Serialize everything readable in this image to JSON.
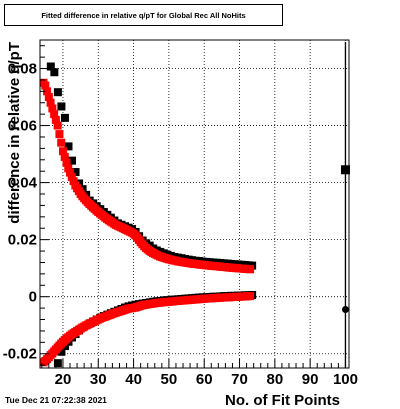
{
  "chart_data": {
    "type": "scatter",
    "title": "Fitted difference in relative q/pT for Global Rec All NoHits",
    "xlabel": "No. of Fit Points",
    "ylabel": "difference in relative q/pT",
    "xlim": [
      13.5,
      101
    ],
    "ylim": [
      -0.025,
      0.09
    ],
    "x_ticks": [
      20,
      30,
      40,
      50,
      60,
      70,
      80,
      90,
      100
    ],
    "x_tick_labels": [
      "20",
      "30",
      "40",
      "50",
      "60",
      "70",
      "80",
      "90",
      "100"
    ],
    "y_ticks": [
      -0.02,
      0,
      0.02,
      0.04,
      0.06,
      0.08
    ],
    "y_tick_labels": [
      "-0.02",
      "0",
      "0.02",
      "0.04",
      "0.06",
      "0.08"
    ],
    "grid": true,
    "series": [
      {
        "color": "#000000",
        "marker": "square",
        "x": [
          16,
          17,
          18,
          19,
          20,
          21,
          22,
          23,
          24,
          25,
          26,
          27,
          28,
          29,
          30,
          31,
          32,
          33,
          34,
          35,
          36,
          37,
          38,
          39,
          40,
          41,
          42,
          43,
          44,
          45,
          46,
          47,
          48,
          49,
          50,
          51,
          52,
          53,
          54,
          55,
          56,
          57,
          58,
          59,
          60,
          61,
          62,
          63,
          64,
          65,
          66,
          67,
          68,
          69,
          70,
          71,
          72,
          73
        ],
        "y": [
          0.08,
          0.078,
          0.071,
          0.066,
          0.062,
          0.052,
          0.047,
          0.043,
          0.039,
          0.037,
          0.035,
          0.033,
          0.032,
          0.031,
          0.03,
          0.029,
          0.028,
          0.027,
          0.026,
          0.025,
          0.0245,
          0.024,
          0.0235,
          0.023,
          0.022,
          0.0205,
          0.019,
          0.018,
          0.0172,
          0.0162,
          0.0155,
          0.015,
          0.0145,
          0.014,
          0.0136,
          0.0132,
          0.013,
          0.0128,
          0.0125,
          0.0123,
          0.0121,
          0.0119,
          0.0118,
          0.0116,
          0.0115,
          0.0114,
          0.0113,
          0.0112,
          0.0111,
          0.011,
          0.0109,
          0.0108,
          0.0107,
          0.0106,
          0.0105,
          0.0104,
          0.0103,
          0.0102
        ]
      },
      {
        "color": "#000000",
        "marker": "square",
        "x": [
          18,
          19,
          20,
          21,
          22,
          23,
          24,
          25,
          26,
          27,
          28,
          29,
          30,
          31,
          32,
          33,
          34,
          35,
          36,
          37,
          38,
          39,
          40,
          41,
          42,
          43,
          44,
          45,
          46,
          47,
          48,
          49,
          50,
          51,
          52,
          53,
          54,
          55,
          56,
          57,
          58,
          59,
          60,
          61,
          62,
          63,
          64,
          65,
          66,
          67,
          68,
          69,
          70,
          71,
          72,
          73
        ],
        "y": [
          -0.024,
          -0.02,
          -0.018,
          -0.0165,
          -0.015,
          -0.0138,
          -0.0125,
          -0.0115,
          -0.0108,
          -0.0101,
          -0.0094,
          -0.0087,
          -0.0081,
          -0.0075,
          -0.007,
          -0.0065,
          -0.006,
          -0.0055,
          -0.005,
          -0.0045,
          -0.0041,
          -0.0038,
          -0.0035,
          -0.0033,
          -0.0031,
          -0.0029,
          -0.0027,
          -0.0025,
          -0.0023,
          -0.0022,
          -0.002,
          -0.0019,
          -0.0018,
          -0.0017,
          -0.0016,
          -0.0015,
          -0.0014,
          -0.0013,
          -0.0012,
          -0.0011,
          -0.001,
          -0.0009,
          -0.0009,
          -0.0008,
          -0.0007,
          -0.0007,
          -0.0006,
          -0.0005,
          -0.0005,
          -0.0004,
          -0.0004,
          -0.0003,
          -0.0003,
          -0.0002,
          -0.0002,
          -0.0001
        ]
      },
      {
        "color": "#ff0000",
        "marker": "square",
        "x": [
          14.5,
          15,
          15.5,
          16,
          16.5,
          17,
          17.5,
          18,
          18.5,
          19,
          19.5,
          20,
          20.5,
          21,
          21.5,
          22,
          22.5,
          23,
          23.5,
          24,
          24.5,
          25,
          25.5,
          26,
          26.5,
          27,
          27.5,
          28,
          28.5,
          29,
          29.5,
          30,
          30.5,
          31,
          31.5,
          32,
          32.5,
          33,
          33.5,
          34,
          34.5,
          35,
          35.5,
          36,
          36.5,
          37,
          37.5,
          38,
          38.5,
          39,
          39.5,
          40,
          40.5,
          41,
          41.5,
          42,
          42.5,
          43,
          43.5,
          44,
          44.5,
          45,
          45.5,
          46,
          46.5,
          47,
          47.5,
          48,
          48.5,
          49,
          49.5,
          50,
          50.5,
          51,
          51.5,
          52,
          52.5,
          53,
          53.5,
          54,
          54.5,
          55,
          55.5,
          56,
          56.5,
          57,
          57.5,
          58,
          58.5,
          59,
          59.5,
          60,
          60.5,
          61,
          61.5,
          62,
          62.5,
          63,
          63.5,
          64,
          64.5,
          65,
          65.5,
          66,
          66.5,
          67,
          67.5,
          68,
          68.5,
          69,
          69.5,
          70,
          70.5,
          71,
          71.5,
          72,
          72.5,
          73
        ],
        "y": [
          0.075,
          0.074,
          0.072,
          0.07,
          0.068,
          0.066,
          0.064,
          0.062,
          0.06,
          0.057,
          0.054,
          0.051,
          0.049,
          0.047,
          0.045,
          0.0435,
          0.042,
          0.0405,
          0.039,
          0.038,
          0.037,
          0.036,
          0.0352,
          0.0345,
          0.0338,
          0.0331,
          0.0325,
          0.0319,
          0.0313,
          0.0308,
          0.0302,
          0.0297,
          0.0292,
          0.0287,
          0.0282,
          0.0277,
          0.0272,
          0.0268,
          0.0264,
          0.026,
          0.0256,
          0.0252,
          0.0249,
          0.0246,
          0.0243,
          0.024,
          0.0237,
          0.0234,
          0.0231,
          0.0228,
          0.0225,
          0.0221,
          0.0215,
          0.0207,
          0.0199,
          0.0191,
          0.0184,
          0.0177,
          0.0171,
          0.0166,
          0.0161,
          0.0157,
          0.0153,
          0.015,
          0.0147,
          0.0144,
          0.0141,
          0.0139,
          0.0137,
          0.0135,
          0.0133,
          0.0131,
          0.013,
          0.0128,
          0.0127,
          0.0126,
          0.0124,
          0.0123,
          0.0122,
          0.0121,
          0.012,
          0.0119,
          0.0118,
          0.0117,
          0.0116,
          0.0115,
          0.0115,
          0.0114,
          0.0113,
          0.0112,
          0.0112,
          0.0111,
          0.011,
          0.011,
          0.0109,
          0.0108,
          0.0108,
          0.0107,
          0.0107,
          0.0106,
          0.0105,
          0.0105,
          0.0104,
          0.0104,
          0.0103,
          0.0102,
          0.0102,
          0.0101,
          0.0101,
          0.01,
          0.01,
          0.0099,
          0.0099,
          0.0098,
          0.0098,
          0.0097,
          0.0097,
          0.0096
        ]
      },
      {
        "color": "#ff0000",
        "marker": "square",
        "x": [
          14.5,
          15,
          15.5,
          16,
          16.5,
          17,
          17.5,
          18,
          18.5,
          19,
          19.5,
          20,
          20.5,
          21,
          21.5,
          22,
          22.5,
          23,
          23.5,
          24,
          24.5,
          25,
          25.5,
          26,
          26.5,
          27,
          27.5,
          28,
          28.5,
          29,
          29.5,
          30,
          30.5,
          31,
          31.5,
          32,
          32.5,
          33,
          33.5,
          34,
          34.5,
          35,
          35.5,
          36,
          36.5,
          37,
          37.5,
          38,
          38.5,
          39,
          39.5,
          40,
          40.5,
          41,
          41.5,
          42,
          42.5,
          43,
          43.5,
          44,
          44.5,
          45,
          45.5,
          46,
          46.5,
          47,
          47.5,
          48,
          48.5,
          49,
          49.5,
          50,
          50.5,
          51,
          51.5,
          52,
          52.5,
          53,
          53.5,
          54,
          54.5,
          55,
          55.5,
          56,
          56.5,
          57,
          57.5,
          58,
          58.5,
          59,
          59.5,
          60,
          60.5,
          61,
          61.5,
          62,
          62.5,
          63,
          63.5,
          64,
          64.5,
          65,
          65.5,
          66,
          66.5,
          67,
          67.5,
          68,
          68.5,
          69,
          69.5,
          70,
          70.5,
          71,
          71.5,
          72,
          72.5,
          73
        ],
        "y": [
          -0.023,
          -0.0225,
          -0.0219,
          -0.0212,
          -0.0205,
          -0.0199,
          -0.0192,
          -0.0185,
          -0.0178,
          -0.0171,
          -0.0164,
          -0.0158,
          -0.0152,
          -0.0147,
          -0.0142,
          -0.0137,
          -0.0132,
          -0.0128,
          -0.0124,
          -0.012,
          -0.0116,
          -0.0112,
          -0.0108,
          -0.0105,
          -0.0101,
          -0.0098,
          -0.0095,
          -0.0092,
          -0.0089,
          -0.0086,
          -0.0083,
          -0.008,
          -0.0077,
          -0.0074,
          -0.0072,
          -0.007,
          -0.0067,
          -0.0065,
          -0.0063,
          -0.006,
          -0.0058,
          -0.0056,
          -0.0054,
          -0.0052,
          -0.005,
          -0.0048,
          -0.0046,
          -0.0044,
          -0.0042,
          -0.0041,
          -0.004,
          -0.0039,
          -0.0038,
          -0.0036,
          -0.0034,
          -0.0032,
          -0.003,
          -0.0029,
          -0.0028,
          -0.0027,
          -0.0026,
          -0.0025,
          -0.0024,
          -0.0023,
          -0.0022,
          -0.0021,
          -0.0021,
          -0.002,
          -0.0019,
          -0.0019,
          -0.0018,
          -0.0018,
          -0.0017,
          -0.0017,
          -0.0016,
          -0.0015,
          -0.0015,
          -0.0014,
          -0.0014,
          -0.0013,
          -0.0013,
          -0.0012,
          -0.0012,
          -0.0011,
          -0.0011,
          -0.001,
          -0.001,
          -0.0009,
          -0.0009,
          -0.0008,
          -0.0008,
          -0.0007,
          -0.0007,
          -0.0006,
          -0.0006,
          -0.0006,
          -0.0005,
          -0.0005,
          -0.0004,
          -0.0004,
          -0.0004,
          -0.0003,
          -0.0003,
          -0.0003,
          -0.0002,
          -0.0002,
          -0.0002,
          -0.0001,
          -0.0001,
          -0.0001,
          0,
          0,
          0,
          0.0001,
          0.0001,
          0.0001,
          0.0002,
          0.0002
        ]
      },
      {
        "color": "#000000",
        "marker": "square",
        "x": [
          100
        ],
        "y": [
          0.0445
        ]
      },
      {
        "color": "#000000",
        "marker": "circle",
        "x": [
          100
        ],
        "y": [
          -0.0045
        ]
      }
    ]
  },
  "timestamp": "Tue Dec 21 07:22:38 2021"
}
